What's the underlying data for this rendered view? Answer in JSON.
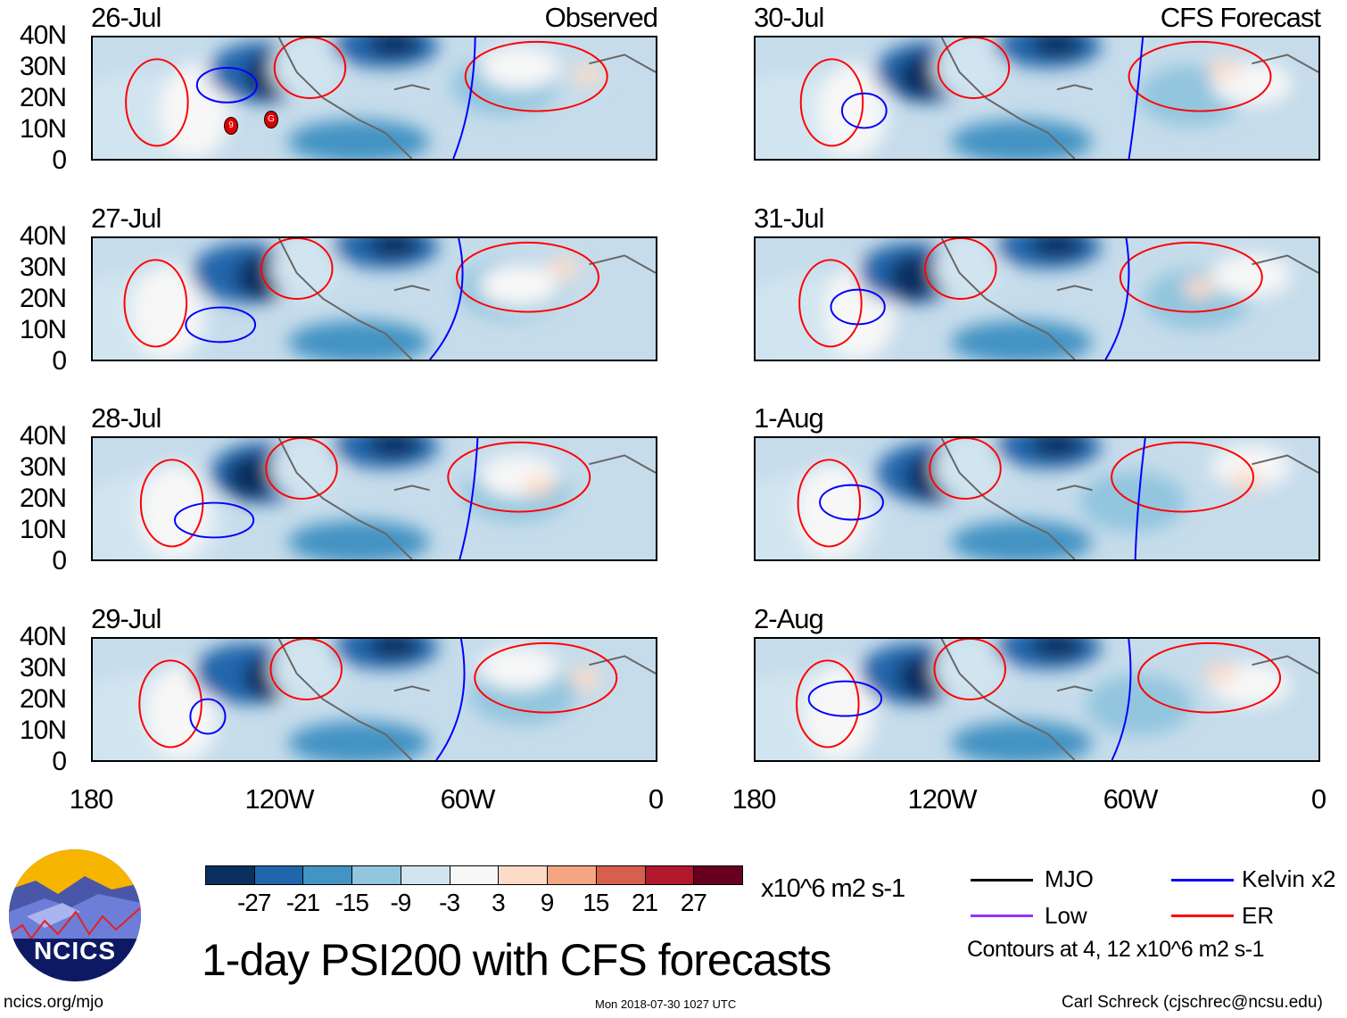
{
  "panels": [
    {
      "date": "26-Jul",
      "label": "Observed"
    },
    {
      "date": "27-Jul"
    },
    {
      "date": "28-Jul"
    },
    {
      "date": "29-Jul"
    },
    {
      "date": "30-Jul",
      "label": "CFS Forecast"
    },
    {
      "date": "31-Jul"
    },
    {
      "date": "1-Aug"
    },
    {
      "date": "2-Aug"
    }
  ],
  "lat_labels": [
    "40N",
    "30N",
    "20N",
    "10N",
    "0"
  ],
  "lon_labels": [
    "180",
    "120W",
    "60W",
    "0"
  ],
  "colorbar": {
    "colors": [
      "#0b2f5e",
      "#2166ac",
      "#4393c3",
      "#92c5de",
      "#d1e5f0",
      "#f7f7f7",
      "#fddbc7",
      "#f4a582",
      "#d6604d",
      "#b2182b",
      "#67001f"
    ],
    "ticks": [
      "-27",
      "-21",
      "-15",
      "-9",
      "-3",
      "3",
      "9",
      "15",
      "21",
      "27"
    ],
    "units": "x10^6 m2 s-1"
  },
  "legend": {
    "items": [
      {
        "label": "MJO",
        "color": "#000000"
      },
      {
        "label": "Kelvin x2",
        "color": "#0000ff"
      },
      {
        "label": "Low",
        "color": "#9933ff"
      },
      {
        "label": "ER",
        "color": "#ff0000"
      }
    ],
    "contours_note": "Contours at 4, 12 x10^6 m2 s-1"
  },
  "title": "1-day PSI200 with CFS forecasts",
  "logo_text": "NCICS",
  "footer": {
    "url": "ncics.org/mjo",
    "timestamp": "Mon 2018-07-30 1027 UTC",
    "author": "Carl Schreck (cjschrec@ncsu.edu)"
  },
  "storm_labels": [
    "9",
    "G"
  ]
}
